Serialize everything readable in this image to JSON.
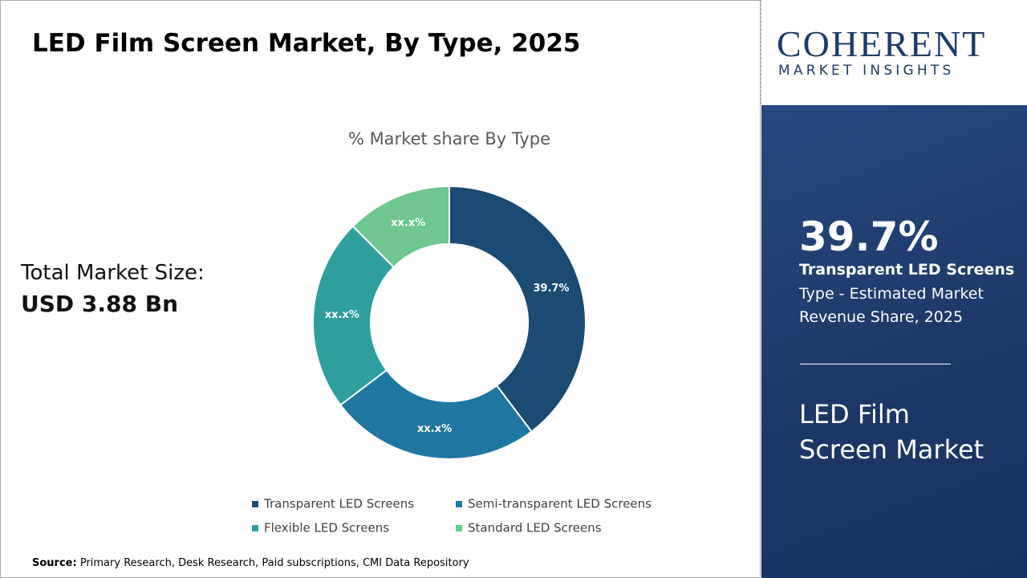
{
  "header": {
    "title": "LED Film Screen Market, By Type, 2025"
  },
  "market_size": {
    "label": "Total Market Size:",
    "value": "USD 3.88 Bn"
  },
  "chart_data": {
    "type": "donut",
    "title": "% Market share By Type",
    "categories": [
      "Transparent LED Screens",
      "Semi-transparent LED Screens",
      "Flexible LED Screens",
      "Standard LED Screens"
    ],
    "values": [
      39.7,
      25,
      22.8,
      12.5
    ],
    "value_labels": [
      "39.7%",
      "xx.x%",
      "xx.x%",
      "xx.x%"
    ],
    "colors": [
      "#1b4a72",
      "#1f77a2",
      "#2f9e9f",
      "#6fc68f"
    ]
  },
  "logo": {
    "name": "COHERENT",
    "tagline": "MARKET INSIGHTS"
  },
  "highlight": {
    "value": "39.7%",
    "segment": "Transparent LED Screens",
    "description": "Type - Estimated Market Revenue Share, 2025",
    "market": "LED Film Screen Market"
  },
  "footer": {
    "source_label": "Source:",
    "source": "Primary Research, Desk Research, Paid subscriptions, CMI Data Repository"
  }
}
